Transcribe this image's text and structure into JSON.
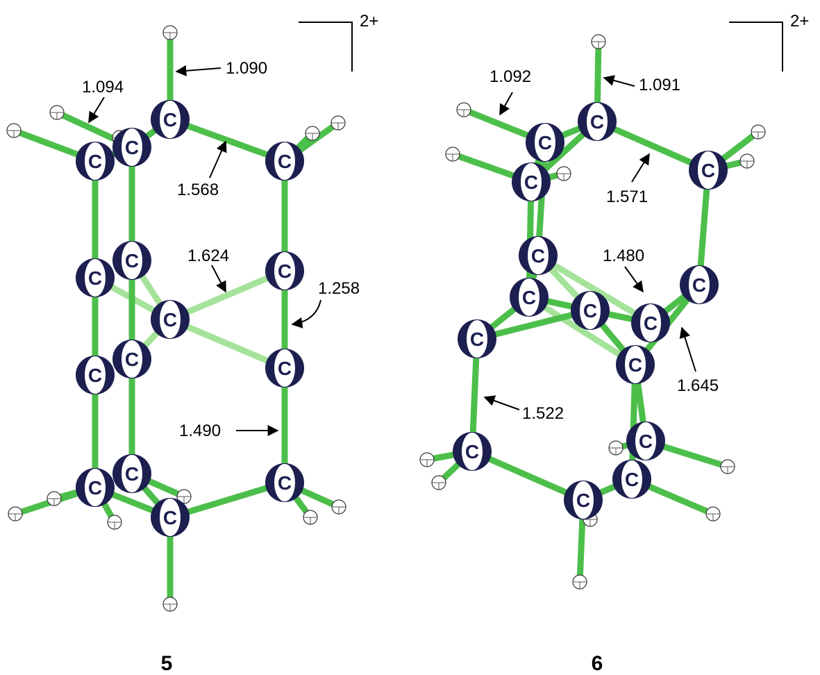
{
  "molecules": [
    {
      "number": "5",
      "charge": "2+",
      "atoms": [
        "C",
        "C",
        "C",
        "C",
        "C",
        "C",
        "C",
        "C",
        "C",
        "C",
        "C",
        "C",
        "C",
        "C",
        "C"
      ],
      "bond_labels": [
        "1.090",
        "1.094",
        "1.568",
        "1.624",
        "1.258",
        "1.490"
      ]
    },
    {
      "number": "6",
      "charge": "2+",
      "atoms": [
        "C",
        "C",
        "C",
        "C",
        "C",
        "C",
        "C",
        "C",
        "C",
        "C",
        "C",
        "C",
        "C",
        "C",
        "C"
      ],
      "bond_labels": [
        "1.092",
        "1.091",
        "1.571",
        "1.480",
        "1.645",
        "1.522"
      ]
    }
  ]
}
